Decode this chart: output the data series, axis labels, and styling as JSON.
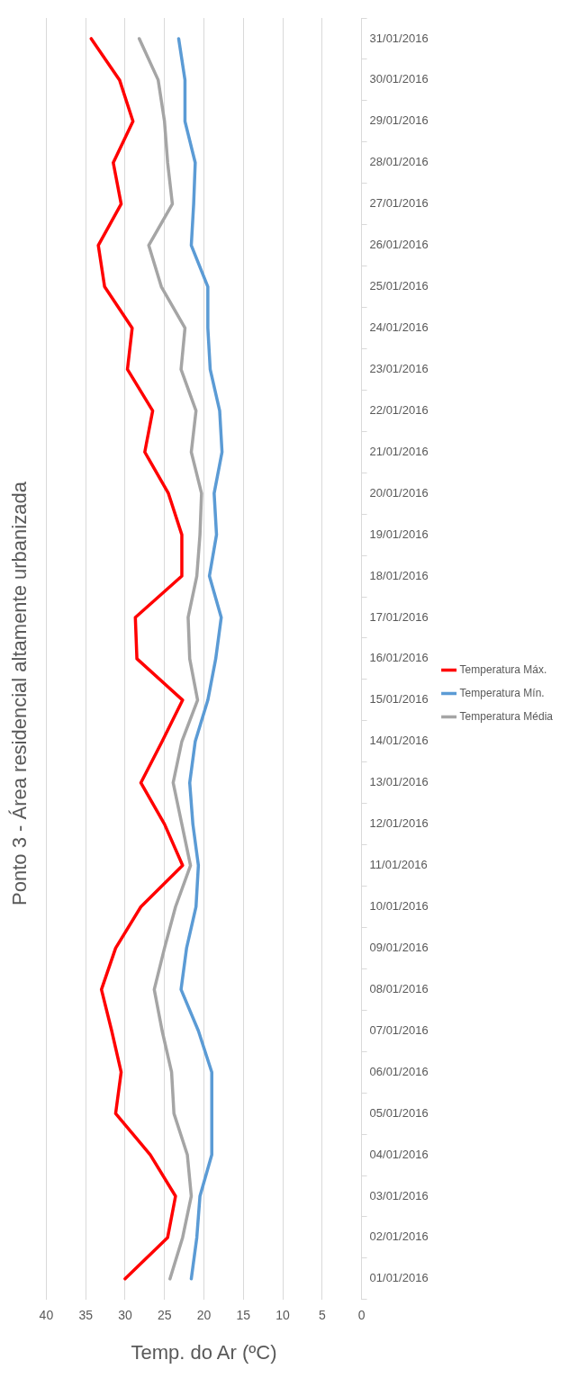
{
  "chart_data": {
    "type": "line",
    "orientation": "horizontal",
    "title": "Ponto 3 - Área residencial altamente urbanizada",
    "xlabel": "Temp. do Ar (ºC)",
    "categories": [
      "31/01/2016",
      "30/01/2016",
      "29/01/2016",
      "28/01/2016",
      "27/01/2016",
      "26/01/2016",
      "25/01/2016",
      "24/01/2016",
      "23/01/2016",
      "22/01/2016",
      "21/01/2016",
      "20/01/2016",
      "19/01/2016",
      "18/01/2016",
      "17/01/2016",
      "16/01/2016",
      "15/01/2016",
      "14/01/2016",
      "13/01/2016",
      "12/01/2016",
      "11/01/2016",
      "10/01/2016",
      "09/01/2016",
      "08/01/2016",
      "07/01/2016",
      "06/01/2016",
      "05/01/2016",
      "04/01/2016",
      "03/01/2016",
      "02/01/2016",
      "01/01/2016"
    ],
    "series": [
      {
        "name": "Temperatura Máx.",
        "color": "#ff0000",
        "values": [
          34.3,
          30.7,
          29.0,
          31.5,
          30.5,
          33.4,
          32.6,
          29.1,
          29.7,
          26.5,
          27.5,
          24.5,
          22.8,
          22.8,
          28.7,
          28.5,
          22.7,
          25.3,
          28.0,
          25.0,
          22.7,
          28.0,
          31.2,
          33.0,
          31.7,
          30.5,
          31.2,
          26.8,
          23.6,
          24.6,
          30.0
        ]
      },
      {
        "name": "Temperatura Mín.",
        "color": "#5b9bd5",
        "values": [
          23.2,
          22.4,
          22.4,
          21.1,
          21.3,
          21.6,
          19.5,
          19.5,
          19.2,
          18.0,
          17.7,
          18.7,
          18.4,
          19.3,
          17.8,
          18.5,
          19.5,
          21.1,
          21.8,
          21.4,
          20.7,
          21.0,
          22.2,
          22.9,
          20.7,
          19.0,
          19.0,
          19.0,
          20.5,
          20.9,
          21.6
        ]
      },
      {
        "name": "Temperatura Média",
        "color": "#a5a5a5",
        "values": [
          28.2,
          25.8,
          25.0,
          24.6,
          24.0,
          27.0,
          25.4,
          22.4,
          22.9,
          21.0,
          21.6,
          20.3,
          20.5,
          20.9,
          22.0,
          21.8,
          20.8,
          22.8,
          23.9,
          22.8,
          21.7,
          23.6,
          25.0,
          26.3,
          25.3,
          24.1,
          23.8,
          22.1,
          21.6,
          22.7,
          24.3
        ]
      }
    ],
    "xlim": [
      40,
      0
    ],
    "xticks": [
      40,
      35,
      30,
      25,
      20,
      15,
      10,
      5,
      0
    ],
    "grid": "x",
    "legend": "right",
    "marker": "none",
    "line_style": "solid"
  }
}
